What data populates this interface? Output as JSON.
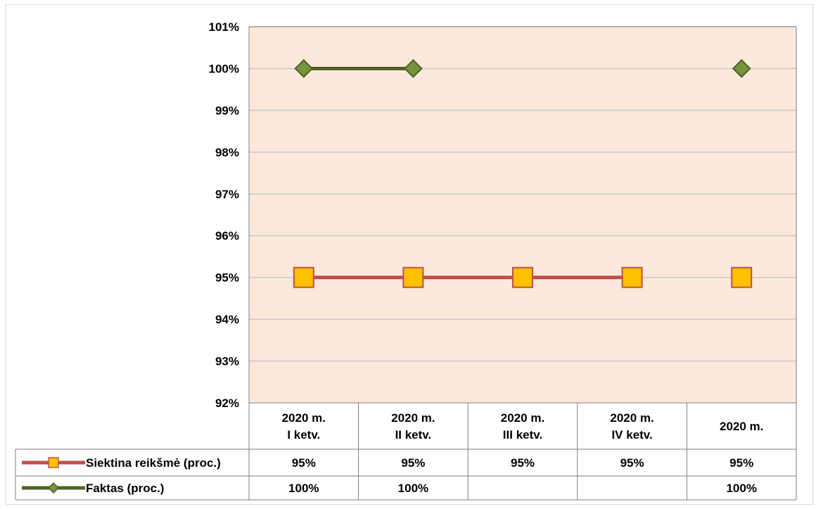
{
  "chart_data": {
    "type": "line",
    "title": "",
    "xlabel": "",
    "ylabel": "",
    "ylim": [
      92,
      101
    ],
    "y_tick_step": 1,
    "y_tick_suffix": "%",
    "grid": true,
    "legend": "table-left",
    "colors": {
      "plot_background": "#fce9db",
      "gridline": "#c8c8c8"
    },
    "categories": [
      [
        "2020 m.",
        "I ketv."
      ],
      [
        "2020 m.",
        "II ketv."
      ],
      [
        "2020 m.",
        "III ketv."
      ],
      [
        "2020 m.",
        "IV ketv."
      ],
      [
        "2020 m."
      ]
    ],
    "series": [
      {
        "name": "Siektina reikšmė (proc.)",
        "values": [
          95,
          95,
          95,
          95,
          95
        ],
        "labels": [
          "95%",
          "95%",
          "95%",
          "95%",
          "95%"
        ],
        "line_segments": [
          [
            0,
            3
          ]
        ],
        "marker": "square",
        "line_color": "#c0504d",
        "marker_fill": "#ffc000",
        "marker_stroke": "#c0504d"
      },
      {
        "name": "Faktas (proc.)",
        "values": [
          100,
          100,
          null,
          null,
          100
        ],
        "labels": [
          "100%",
          "100%",
          "",
          "",
          "100%"
        ],
        "line_segments": [
          [
            0,
            1
          ]
        ],
        "marker": "diamond",
        "line_color": "#4f6228",
        "marker_fill": "#77933c",
        "marker_stroke": "#4f6228"
      }
    ]
  }
}
